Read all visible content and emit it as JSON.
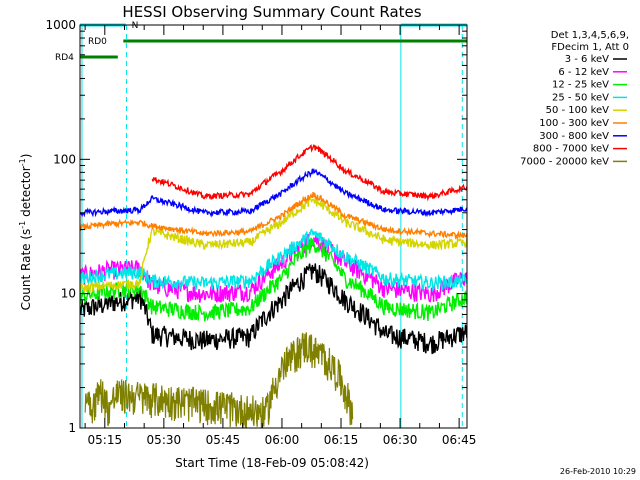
{
  "figure": {
    "footer_date": "26-Feb-2010 10:29"
  },
  "chart_data": {
    "type": "line",
    "title": "HESSI Observing Summary Count Rates",
    "xlabel": "Start Time (18-Feb-09 05:08:42)",
    "ylabel_main": "Count Rate (s",
    "ylabel_sup1": "-1",
    "ylabel_mid": " detector",
    "ylabel_sup2": "-1",
    "ylabel_end": ")",
    "y_scale": "log",
    "ylim": [
      1,
      1000
    ],
    "xlim_minutes": [
      308.7,
      407
    ],
    "x_ticks": [
      {
        "t": 315,
        "label": "05:15"
      },
      {
        "t": 330,
        "label": "05:30"
      },
      {
        "t": 345,
        "label": "05:45"
      },
      {
        "t": 360,
        "label": "06:00"
      },
      {
        "t": 375,
        "label": "06:15"
      },
      {
        "t": 390,
        "label": "06:30"
      },
      {
        "t": 405,
        "label": "06:45"
      }
    ],
    "y_ticks": [
      {
        "v": 1,
        "label": "1"
      },
      {
        "v": 10,
        "label": "10"
      },
      {
        "v": 100,
        "label": "100"
      },
      {
        "v": 1000,
        "label": "1000"
      }
    ],
    "legend_position": "right",
    "legend_header": [
      "Det 1,3,4,5,6,9,",
      "FDecim 1, Att 0"
    ],
    "series": [
      {
        "name": "3 - 6 keV",
        "color": "#000000",
        "x": [
          308.7,
          316,
          324,
          327,
          340,
          352,
          360,
          368,
          376,
          386,
          398,
          407
        ],
        "y": [
          7.5,
          8.5,
          9.5,
          5,
          4.5,
          4.8,
          9,
          15,
          9,
          5,
          4.3,
          5.2
        ]
      },
      {
        "name": "6 - 12 keV",
        "color": "#ff00ff",
        "x": [
          308.7,
          316,
          324,
          327,
          340,
          352,
          360,
          368,
          376,
          386,
          398,
          407
        ],
        "y": [
          13.5,
          15,
          15.5,
          11.5,
          10,
          10.5,
          17,
          26,
          17,
          11,
          10,
          13.5
        ]
      },
      {
        "name": "12 - 25 keV",
        "color": "#00ee00",
        "x": [
          308.7,
          316,
          324,
          327,
          340,
          352,
          360,
          368,
          376,
          386,
          398,
          407
        ],
        "y": [
          9.5,
          10.5,
          11,
          8,
          7.2,
          7.8,
          13,
          24,
          13,
          8,
          7.2,
          9.5
        ]
      },
      {
        "name": "25 - 50 keV",
        "color": "#00e5e5",
        "x": [
          308.7,
          316,
          324,
          327,
          340,
          352,
          360,
          368,
          376,
          386,
          398,
          407
        ],
        "y": [
          13,
          14,
          14.5,
          12.5,
          12,
          12.5,
          19,
          28,
          19,
          13,
          12,
          12.5
        ]
      },
      {
        "name": "50 - 100 keV",
        "color": "#d4d400",
        "x": [
          308.7,
          316,
          324,
          327,
          340,
          352,
          360,
          368,
          376,
          386,
          398,
          407
        ],
        "y": [
          11,
          11.5,
          12,
          29,
          23,
          24,
          34,
          50,
          34,
          25,
          23,
          24
        ]
      },
      {
        "name": "100 - 300 keV",
        "color": "#ff8000",
        "x": [
          308.7,
          316,
          324,
          327,
          340,
          352,
          360,
          368,
          376,
          386,
          398,
          407
        ],
        "y": [
          31,
          33,
          34,
          32,
          28,
          29,
          38,
          55,
          38,
          30,
          28,
          27
        ]
      },
      {
        "name": "300 - 800 keV",
        "color": "#0000ff",
        "x": [
          308.7,
          316,
          324,
          327,
          340,
          352,
          360,
          368,
          376,
          386,
          398,
          407
        ],
        "y": [
          40,
          41,
          42,
          51,
          40,
          41,
          56,
          82,
          56,
          42,
          40,
          43
        ]
      },
      {
        "name": "800 - 7000 keV",
        "color": "#ff0000",
        "x": [
          308.7,
          316,
          324,
          327,
          340,
          352,
          360,
          368,
          376,
          386,
          398,
          407
        ],
        "y": [
          null,
          null,
          null,
          72,
          53,
          55,
          82,
          125,
          82,
          57,
          53,
          62
        ]
      },
      {
        "name": "7000 - 20000 keV",
        "color": "#808000",
        "x": [
          310,
          312,
          314,
          316,
          318,
          356,
          358,
          360,
          363,
          366,
          368,
          371,
          374,
          376,
          378
        ],
        "y": [
          1.8,
          1.5,
          1.9,
          1.4,
          1.8,
          1.3,
          2.0,
          2.8,
          3.5,
          4.2,
          3.8,
          3.3,
          2.6,
          1.9,
          1.3
        ]
      }
    ],
    "flags": [
      {
        "label": "N",
        "color": "#00e5e5",
        "value": 1.0,
        "ranges": [
          [
            308.7,
            320.3
          ],
          [
            390.2,
            407
          ]
        ]
      },
      {
        "label": "RD0",
        "color": "#008000",
        "value": 0.9,
        "ranges": [
          [
            319.7,
            407
          ]
        ]
      },
      {
        "label": "RD4",
        "color": "#008000",
        "value": 0.8,
        "ranges": [
          [
            308.7,
            318.3
          ]
        ]
      }
    ],
    "vlines": [
      {
        "t": 309.2,
        "style": "solid",
        "color": "#00e5e5"
      },
      {
        "t": 320.5,
        "style": "dashed",
        "color": "#00e5e5"
      },
      {
        "t": 390.2,
        "style": "solid",
        "color": "#00e5e5"
      },
      {
        "t": 405.8,
        "style": "dashed",
        "color": "#00e5e5"
      }
    ]
  }
}
